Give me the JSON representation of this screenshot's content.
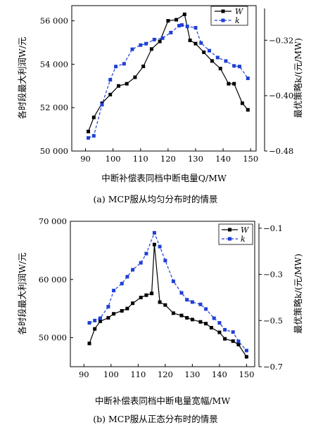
{
  "chart_data": [
    {
      "type": "line",
      "caption": "(a) MCP服从均匀分布时的情景",
      "xlabel": "中断补偿表同档中断电量Q/MW",
      "ylabel": "各时段最大利润W/元",
      "y2label": "最优策略k/(元/MW)",
      "xlim": [
        85,
        152
      ],
      "ylim": [
        50000,
        56700
      ],
      "y2lim": [
        -0.48,
        -0.27
      ],
      "xticks": [
        "90",
        "100",
        "110",
        "120",
        "130",
        "140",
        "150"
      ],
      "yticks": [
        "50 000",
        "52 000",
        "54 000",
        "56 000"
      ],
      "y2ticks": [
        "-0.32",
        "-0.40",
        "-0.48"
      ],
      "grid": false,
      "legend_position": "top-right",
      "series": [
        {
          "name": "W",
          "axis": "left",
          "color": "#000000",
          "marker": "square",
          "line": "solid",
          "x": [
            91,
            93,
            96,
            99,
            102,
            105,
            108,
            111,
            114,
            117,
            120,
            123,
            126,
            128,
            130,
            133,
            136,
            139,
            142,
            144,
            147,
            149
          ],
          "y": [
            50900,
            51550,
            52200,
            52600,
            53000,
            53100,
            53400,
            53900,
            54700,
            55050,
            56000,
            56050,
            56300,
            55100,
            54950,
            54550,
            54150,
            53800,
            53100,
            53100,
            52200,
            51900
          ]
        },
        {
          "name": "k",
          "axis": "right",
          "color": "#1f3fd6",
          "marker": "square",
          "line": "dashed",
          "x": [
            91,
            93,
            96,
            99,
            101,
            104,
            107,
            110,
            112,
            115,
            118,
            121,
            124,
            125,
            127,
            130,
            132,
            135,
            138,
            141,
            144,
            146,
            149
          ],
          "y": [
            -0.461,
            -0.458,
            -0.413,
            -0.377,
            -0.358,
            -0.354,
            -0.333,
            -0.327,
            -0.325,
            -0.319,
            -0.317,
            -0.309,
            -0.299,
            -0.298,
            -0.3,
            -0.302,
            -0.324,
            -0.335,
            -0.345,
            -0.35,
            -0.357,
            -0.358,
            -0.375
          ]
        }
      ]
    },
    {
      "type": "line",
      "caption": "(b) MCP服从正态分布时的情景",
      "xlabel": "中断补偿表同档中断电量宽幅/MW",
      "ylabel": "各时段最大利润W/元",
      "y2label": "最优策略k/(元/MW)",
      "xlim": [
        85,
        153
      ],
      "ylim": [
        45000,
        70000
      ],
      "y2lim": [
        -0.7,
        -0.07
      ],
      "xticks": [
        "90",
        "100",
        "110",
        "120",
        "130",
        "140",
        "150"
      ],
      "yticks": [
        "50 000",
        "60 000",
        "70 000"
      ],
      "y2ticks": [
        "-0.1",
        "-0.3",
        "-0.5",
        "-0.7"
      ],
      "grid": false,
      "legend_position": "top-right",
      "series": [
        {
          "name": "W",
          "axis": "left",
          "color": "#000000",
          "marker": "square",
          "line": "solid",
          "x": [
            92,
            94,
            96,
            99,
            101,
            104,
            106,
            108,
            111,
            113,
            115,
            116,
            118,
            120,
            123,
            126,
            128,
            130,
            133,
            135,
            137,
            140,
            142,
            145,
            147,
            150
          ],
          "y": [
            49000,
            51500,
            52800,
            53400,
            54100,
            54600,
            55000,
            55900,
            56900,
            57300,
            57600,
            66000,
            56100,
            55600,
            54200,
            53800,
            53400,
            53100,
            52700,
            52400,
            51700,
            50900,
            49800,
            49400,
            48800,
            46700
          ]
        },
        {
          "name": "k",
          "axis": "right",
          "color": "#1f3fd6",
          "marker": "square",
          "line": "dashed",
          "x": [
            92,
            94,
            96,
            99,
            101,
            104,
            106,
            108,
            111,
            113,
            116,
            118,
            120,
            123,
            126,
            128,
            130,
            133,
            135,
            138,
            140,
            142,
            145,
            147,
            150
          ],
          "y": [
            -0.51,
            -0.5,
            -0.49,
            -0.44,
            -0.37,
            -0.34,
            -0.31,
            -0.28,
            -0.25,
            -0.21,
            -0.12,
            -0.18,
            -0.24,
            -0.33,
            -0.38,
            -0.41,
            -0.42,
            -0.43,
            -0.45,
            -0.49,
            -0.51,
            -0.54,
            -0.55,
            -0.59,
            -0.63
          ]
        }
      ]
    }
  ]
}
